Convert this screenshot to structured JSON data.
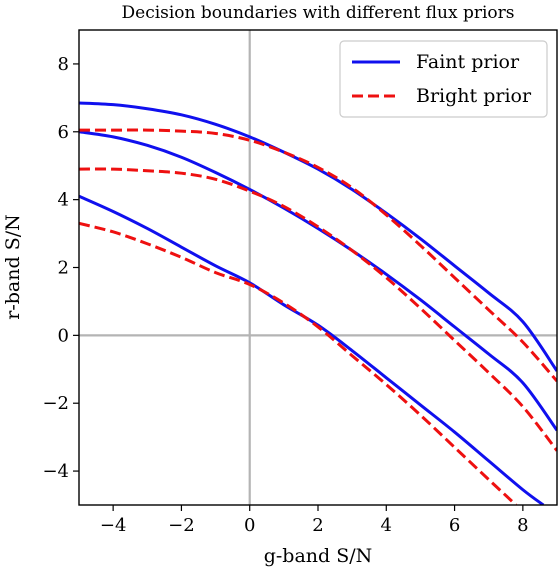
{
  "chart_data": {
    "type": "line",
    "title": "Decision boundaries with different flux priors",
    "xlabel": "g-band S/N",
    "ylabel": "r-band S/N",
    "xlim": [
      -5,
      9
    ],
    "ylim": [
      -5,
      9
    ],
    "xticks": [
      {
        "value": -4,
        "label": "−4"
      },
      {
        "value": -2,
        "label": "−2"
      },
      {
        "value": 0,
        "label": "0"
      },
      {
        "value": 2,
        "label": "2"
      },
      {
        "value": 4,
        "label": "4"
      },
      {
        "value": 6,
        "label": "6"
      },
      {
        "value": 8,
        "label": "8"
      }
    ],
    "yticks": [
      {
        "value": -4,
        "label": "−4"
      },
      {
        "value": -2,
        "label": "−2"
      },
      {
        "value": 0,
        "label": "0"
      },
      {
        "value": 2,
        "label": "2"
      },
      {
        "value": 4,
        "label": "4"
      },
      {
        "value": 6,
        "label": "6"
      },
      {
        "value": 8,
        "label": "8"
      }
    ],
    "reference_lines": {
      "x": 0,
      "y": 0,
      "color": "#b4b4b4"
    },
    "legend": {
      "position": "top-right"
    },
    "series": [
      {
        "name": "Faint prior",
        "color": "#1010ee",
        "style": "solid",
        "curves": [
          {
            "x": [
              -5,
              -4,
              -3,
              -2,
              -1,
              0,
              1,
              2,
              3,
              4,
              5,
              6,
              7,
              8,
              9
            ],
            "y": [
              6.85,
              6.8,
              6.68,
              6.5,
              6.22,
              5.85,
              5.4,
              4.9,
              4.3,
              3.6,
              2.85,
              2.05,
              1.25,
              0.4,
              -1.05
            ]
          },
          {
            "x": [
              -5,
              -4,
              -3,
              -2,
              -1,
              0,
              1,
              2,
              3,
              4,
              5,
              6,
              7,
              8,
              9
            ],
            "y": [
              6.0,
              5.85,
              5.6,
              5.25,
              4.8,
              4.3,
              3.75,
              3.15,
              2.5,
              1.8,
              1.05,
              0.25,
              -0.55,
              -1.4,
              -2.8
            ]
          },
          {
            "x": [
              -5,
              -4,
              -3,
              -2,
              -1,
              0,
              1,
              2,
              3,
              4,
              5,
              6,
              7,
              8,
              8.6
            ],
            "y": [
              4.1,
              3.65,
              3.15,
              2.6,
              2.05,
              1.55,
              0.9,
              0.3,
              -0.45,
              -1.25,
              -2.05,
              -2.85,
              -3.7,
              -4.55,
              -5.0
            ]
          }
        ]
      },
      {
        "name": "Bright prior",
        "color": "#ee1010",
        "style": "dashed",
        "curves": [
          {
            "x": [
              -5,
              -4,
              -3,
              -2,
              -1,
              0,
              1,
              2,
              3,
              4,
              5,
              6,
              7,
              8,
              9
            ],
            "y": [
              6.05,
              6.05,
              6.05,
              6.02,
              5.95,
              5.75,
              5.4,
              4.95,
              4.35,
              3.55,
              2.65,
              1.7,
              0.75,
              -0.2,
              -1.35
            ]
          },
          {
            "x": [
              -5,
              -4,
              -3,
              -2,
              -1,
              0,
              1,
              2,
              3,
              4,
              5,
              6,
              7,
              8,
              9
            ],
            "y": [
              4.9,
              4.9,
              4.85,
              4.78,
              4.6,
              4.25,
              3.8,
              3.2,
              2.5,
              1.7,
              0.8,
              -0.15,
              -1.1,
              -2.1,
              -3.4
            ]
          },
          {
            "x": [
              -5,
              -4,
              -3,
              -2,
              -1,
              0,
              1,
              2,
              3,
              4,
              5,
              6,
              7,
              7.8
            ],
            "y": [
              3.3,
              3.05,
              2.7,
              2.3,
              1.85,
              1.5,
              0.95,
              0.25,
              -0.6,
              -1.45,
              -2.35,
              -3.3,
              -4.25,
              -5.0
            ]
          }
        ]
      }
    ]
  }
}
